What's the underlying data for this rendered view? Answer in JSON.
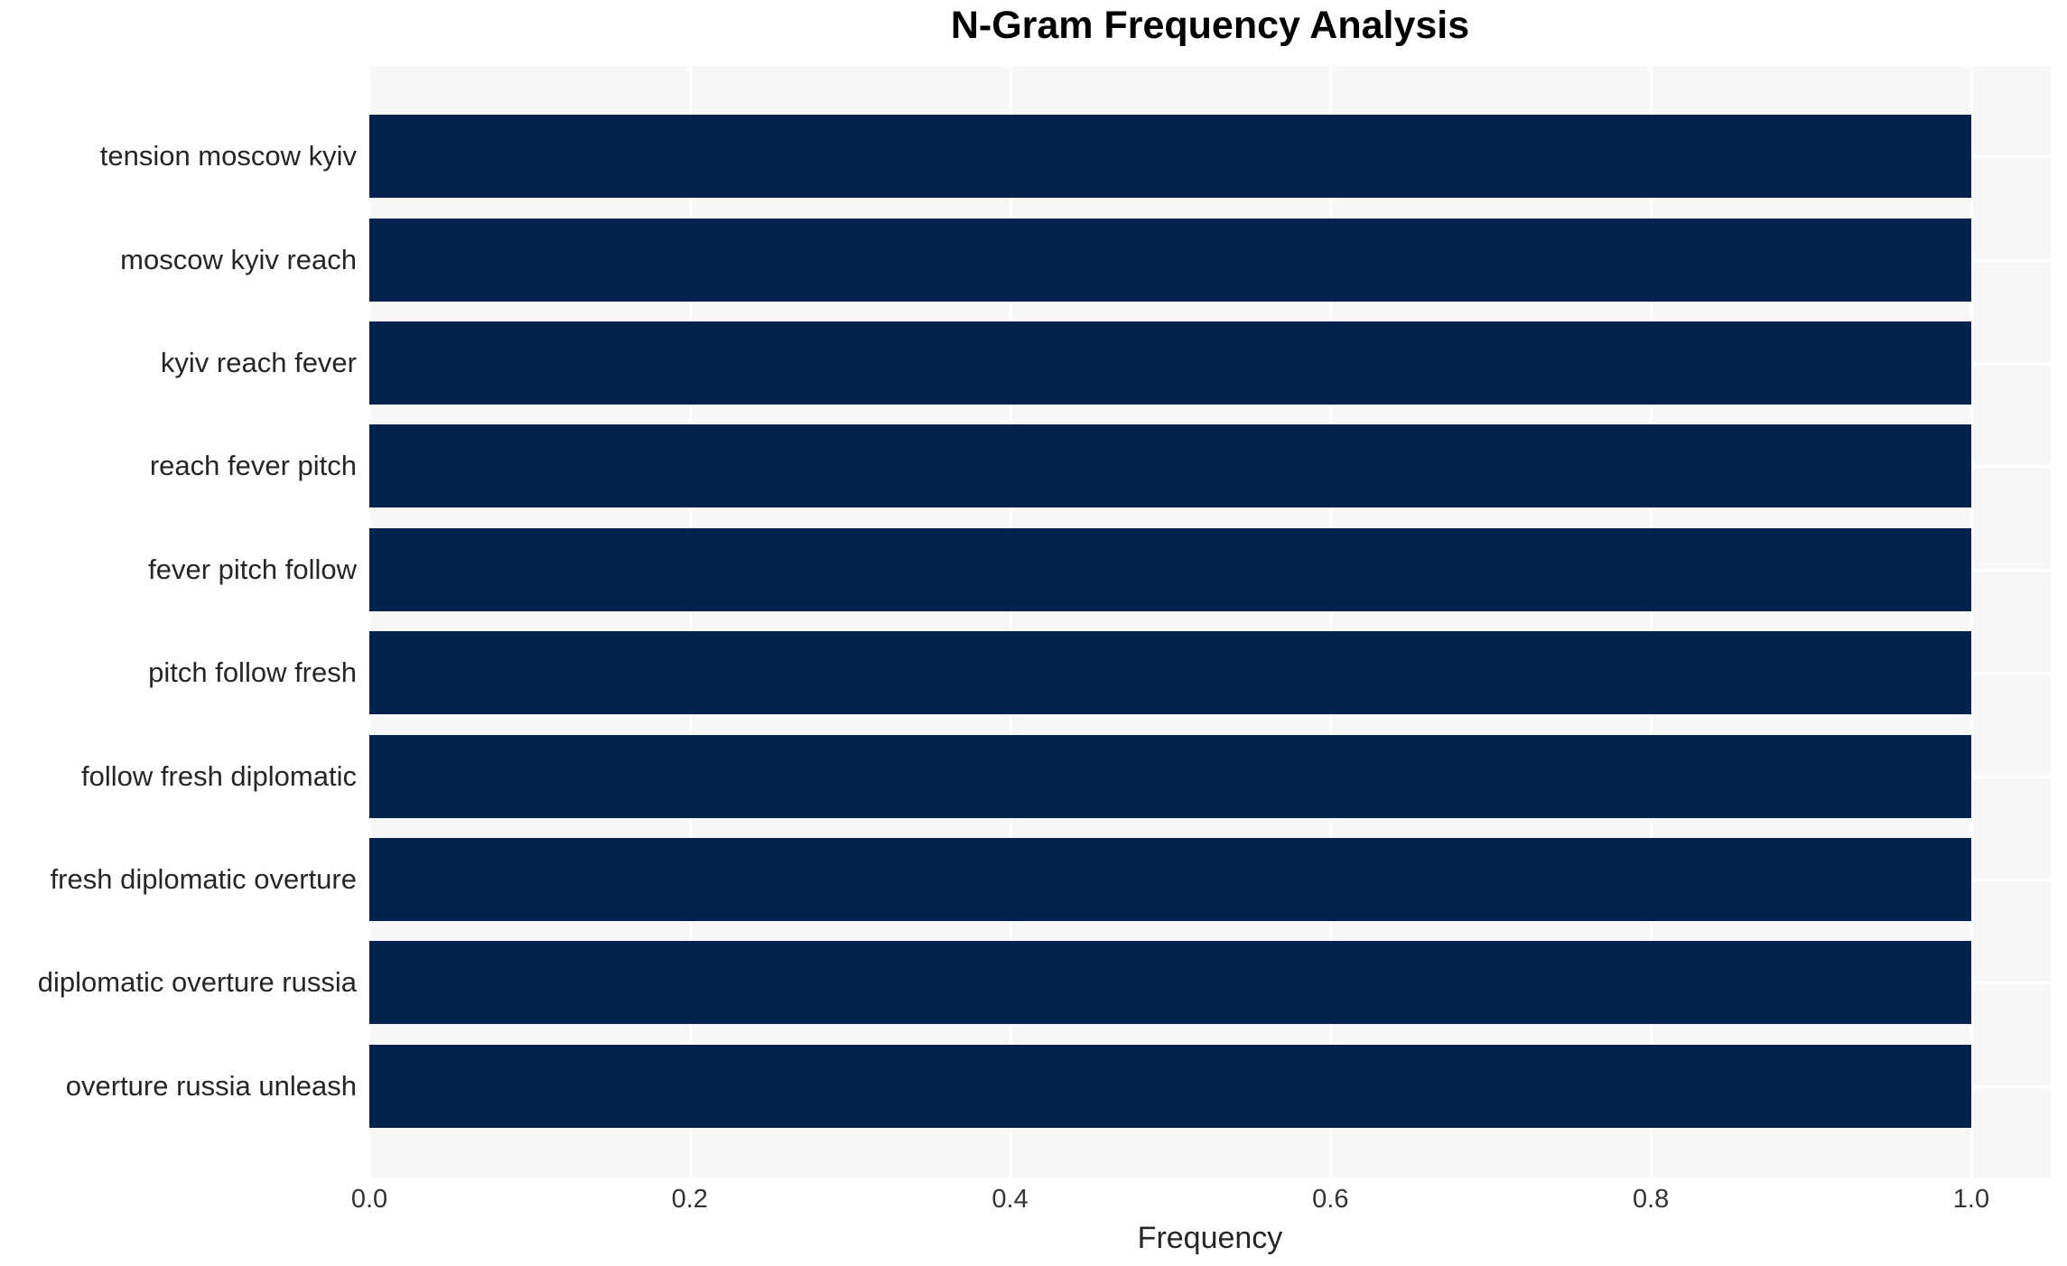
{
  "chart_data": {
    "type": "bar",
    "orientation": "horizontal",
    "title": "N-Gram Frequency Analysis",
    "xlabel": "Frequency",
    "ylabel": "",
    "categories": [
      "tension moscow kyiv",
      "moscow kyiv reach",
      "kyiv reach fever",
      "reach fever pitch",
      "fever pitch follow",
      "pitch follow fresh",
      "follow fresh diplomatic",
      "fresh diplomatic overture",
      "diplomatic overture russia",
      "overture russia unleash"
    ],
    "values": [
      1.0,
      1.0,
      1.0,
      1.0,
      1.0,
      1.0,
      1.0,
      1.0,
      1.0,
      1.0
    ],
    "xticks": [
      0.0,
      0.2,
      0.4,
      0.6,
      0.8,
      1.0
    ],
    "xtick_labels": [
      "0.0",
      "0.2",
      "0.4",
      "0.6",
      "0.8",
      "1.0"
    ],
    "xlim": [
      0,
      1.05
    ],
    "grid": true,
    "legend_visible": false,
    "colors": {
      "bar": "#02234e",
      "plot_background": "#f7f7f7",
      "gridline": "#ffffff",
      "figure_background": "#ffffff",
      "title_text": "#000000",
      "label_text": "#262626",
      "tick_text": "#333333"
    }
  }
}
